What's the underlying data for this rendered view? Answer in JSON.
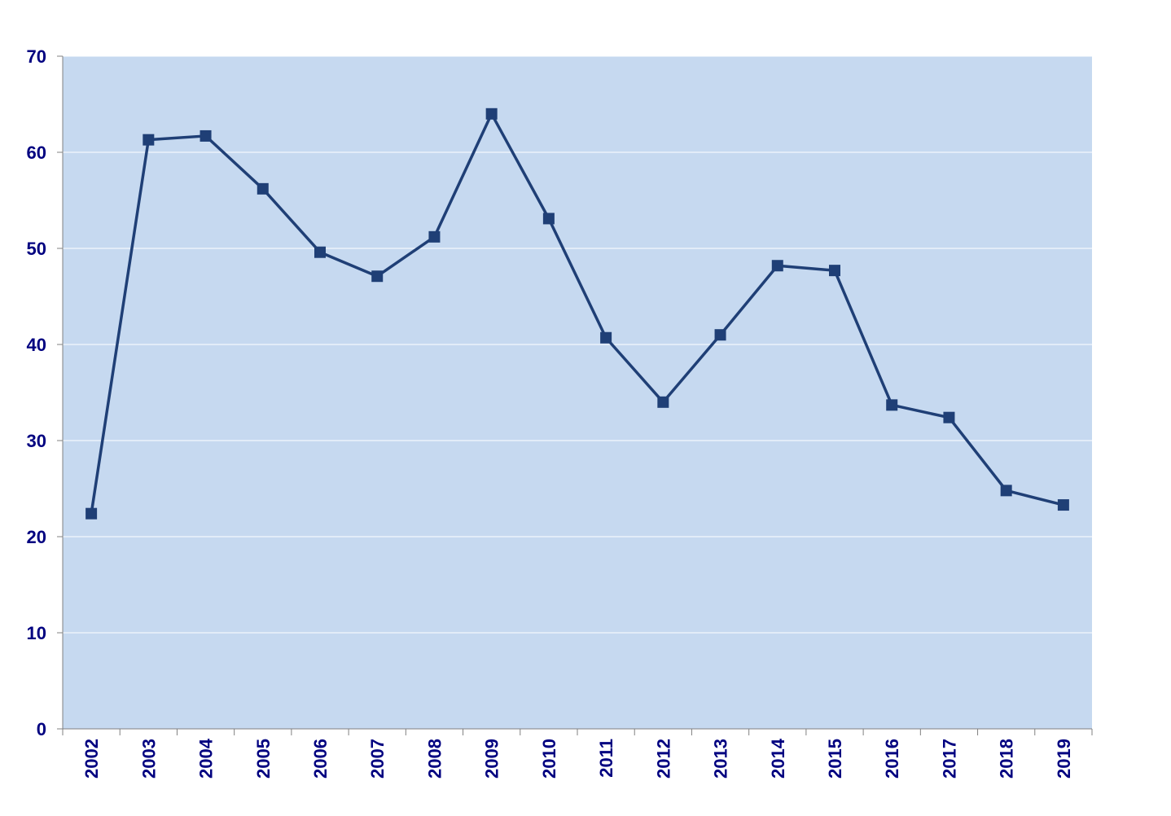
{
  "chart_data": {
    "type": "line",
    "title": "",
    "xlabel": "",
    "ylabel": "",
    "categories": [
      "2002",
      "2003",
      "2004",
      "2005",
      "2006",
      "2007",
      "2008",
      "2009",
      "2010",
      "2011",
      "2012",
      "2013",
      "2014",
      "2015",
      "2016",
      "2017",
      "2018",
      "2019"
    ],
    "series": [
      {
        "values": [
          22.4,
          61.3,
          61.7,
          56.2,
          49.6,
          47.1,
          51.2,
          64.0,
          53.1,
          40.7,
          34.0,
          41.0,
          48.2,
          47.7,
          33.7,
          32.4,
          24.8,
          23.3
        ],
        "color": "#1f3f76",
        "marker": "square"
      }
    ],
    "ylim": [
      0,
      70
    ],
    "yticks": [
      "0",
      "10",
      "20",
      "30",
      "40",
      "50",
      "60",
      "70"
    ],
    "grid": true,
    "legend": "none",
    "colors": {
      "plot_background": "#c6d9f0",
      "gridline": "#ffffff",
      "axis_text": "#000080",
      "axis_line": "#808080"
    }
  }
}
